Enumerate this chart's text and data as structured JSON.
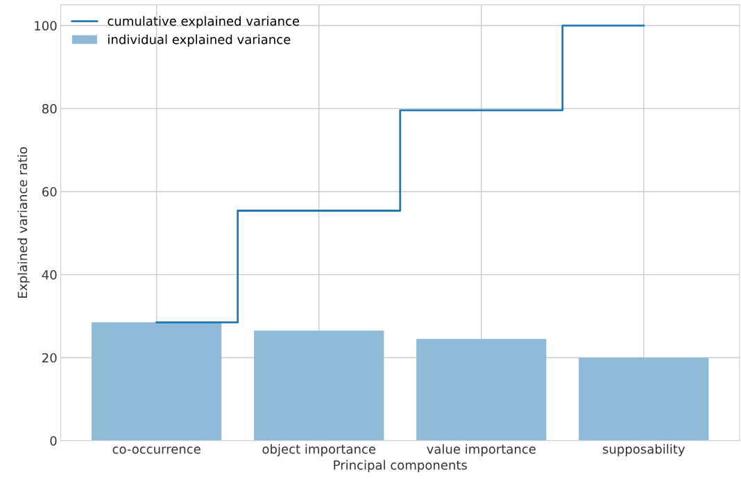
{
  "chart_data": {
    "type": "bar",
    "xlabel": "Principal components",
    "ylabel": "Explained variance ratio",
    "categories": [
      "co-occurrence",
      "object importance",
      "value importance",
      "supposability"
    ],
    "series": [
      {
        "name": "individual explained variance",
        "color": "#8fbbd9",
        "values": [
          28.5,
          26.5,
          24.5,
          20.0
        ]
      },
      {
        "name": "cumulative explained variance",
        "type": "step",
        "color": "#1f77b4",
        "values": [
          28.5,
          55.4,
          79.6,
          100
        ]
      }
    ],
    "ylim": [
      0,
      105
    ],
    "yticks": [
      0,
      20,
      40,
      60,
      80,
      100
    ],
    "grid": true,
    "legend": "top left"
  }
}
